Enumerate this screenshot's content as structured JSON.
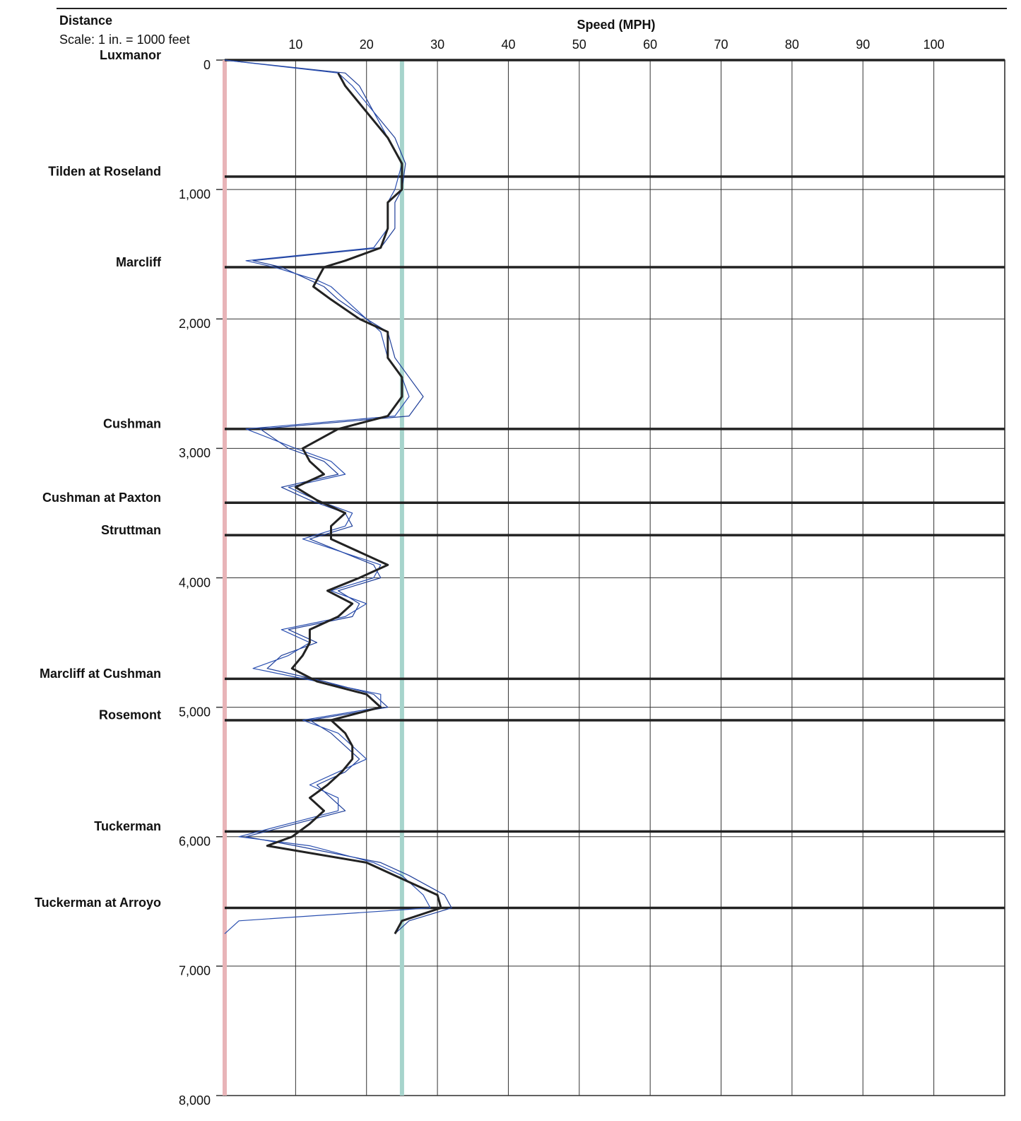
{
  "chart_data": {
    "type": "line",
    "title": "Speed (MPH)",
    "y_label": "Distance",
    "y_subtitle": "Scale: 1 in. = 1000 feet",
    "xlim": [
      0,
      110
    ],
    "xticks": [
      10,
      20,
      30,
      40,
      50,
      60,
      70,
      80,
      90,
      100
    ],
    "ylim": [
      0,
      8000
    ],
    "y_inverted": true,
    "yticks": [
      0,
      {
        "value": 1000,
        "label": "1,000"
      },
      {
        "value": 2000,
        "label": "2,000"
      },
      {
        "value": 3000,
        "label": "3,000"
      },
      {
        "value": 4000,
        "label": "4,000"
      },
      {
        "value": 5000,
        "label": "5,000"
      },
      {
        "value": 6000,
        "label": "6,000"
      },
      {
        "value": 7000,
        "label": "7,000"
      },
      {
        "value": 8000,
        "label": "8,000"
      }
    ],
    "grid": true,
    "reference_lines": [
      {
        "value": 0,
        "color": "#e8b4b8"
      },
      {
        "value": 25,
        "color": "#a6d4cc"
      }
    ],
    "intersections": [
      {
        "name": "Luxmanor",
        "distance": 0
      },
      {
        "name": "Tilden at Roseland",
        "distance": 900
      },
      {
        "name": "Marcliff",
        "distance": 1600
      },
      {
        "name": "Cushman",
        "distance": 2850
      },
      {
        "name": "Cushman at Paxton",
        "distance": 3420
      },
      {
        "name": "Struttman",
        "distance": 3670
      },
      {
        "name": "Marcliff at Cushman",
        "distance": 4780
      },
      {
        "name": "Rosemont",
        "distance": 5100
      },
      {
        "name": "Tuckerman",
        "distance": 5960
      },
      {
        "name": "Tuckerman at Arroyo",
        "distance": 6550
      }
    ],
    "distance": [
      0,
      100,
      200,
      400,
      600,
      800,
      1000,
      1100,
      1300,
      1450,
      1550,
      1600,
      1700,
      1750,
      1850,
      2000,
      2100,
      2300,
      2450,
      2600,
      2750,
      2850,
      3000,
      3100,
      3200,
      3300,
      3400,
      3500,
      3600,
      3700,
      3900,
      4000,
      4100,
      4200,
      4300,
      4400,
      4500,
      4600,
      4700,
      4800,
      4900,
      5000,
      5100,
      5200,
      5300,
      5400,
      5500,
      5600,
      5700,
      5800,
      5900,
      6000,
      6070,
      6200,
      6300,
      6450,
      6550,
      6650,
      6750
    ],
    "series": [
      {
        "color": "#1f3f99",
        "width": 1.2,
        "values": [
          0,
          17,
          19,
          21,
          24,
          25.5,
          25,
          24,
          24,
          22,
          4,
          8,
          12,
          14,
          16,
          20,
          23,
          24,
          26,
          28,
          26,
          5,
          9,
          14,
          16,
          8,
          12,
          17,
          18,
          12,
          21,
          22,
          16,
          19,
          18,
          9,
          13,
          8,
          6,
          14,
          21,
          23,
          12,
          15,
          17,
          19,
          17,
          13,
          15,
          17,
          10,
          3,
          10,
          22,
          26,
          31,
          32,
          26,
          24
        ]
      },
      {
        "color": "#2a4fb0",
        "width": 1.2,
        "values": [
          0,
          16,
          18,
          21,
          23,
          25,
          24,
          23,
          23,
          21,
          3,
          7,
          13,
          15,
          17,
          20,
          22,
          23,
          25,
          26,
          24,
          3,
          10,
          15,
          17,
          9,
          13,
          18,
          17,
          11,
          22,
          21,
          15,
          20,
          17,
          8,
          12,
          9,
          4,
          13,
          22,
          22,
          11,
          16,
          18,
          20,
          16,
          12,
          16,
          16,
          9,
          2,
          12,
          21,
          25,
          28,
          29,
          2,
          0
        ]
      },
      {
        "color": "#222222",
        "width": 3,
        "values": [
          null,
          16,
          17,
          20,
          23,
          25,
          25,
          23,
          23,
          22,
          17,
          14,
          13,
          12.5,
          15,
          19,
          23,
          23,
          25,
          25,
          23,
          16,
          11,
          12,
          14,
          10,
          13,
          17,
          15,
          15,
          23,
          19,
          14.5,
          18,
          16,
          12,
          12,
          11,
          9.5,
          13,
          20,
          22,
          15,
          17,
          18,
          18,
          16.5,
          14.5,
          12,
          14,
          12,
          9.5,
          6,
          20,
          24,
          30,
          30.5,
          25,
          24
        ]
      }
    ]
  }
}
